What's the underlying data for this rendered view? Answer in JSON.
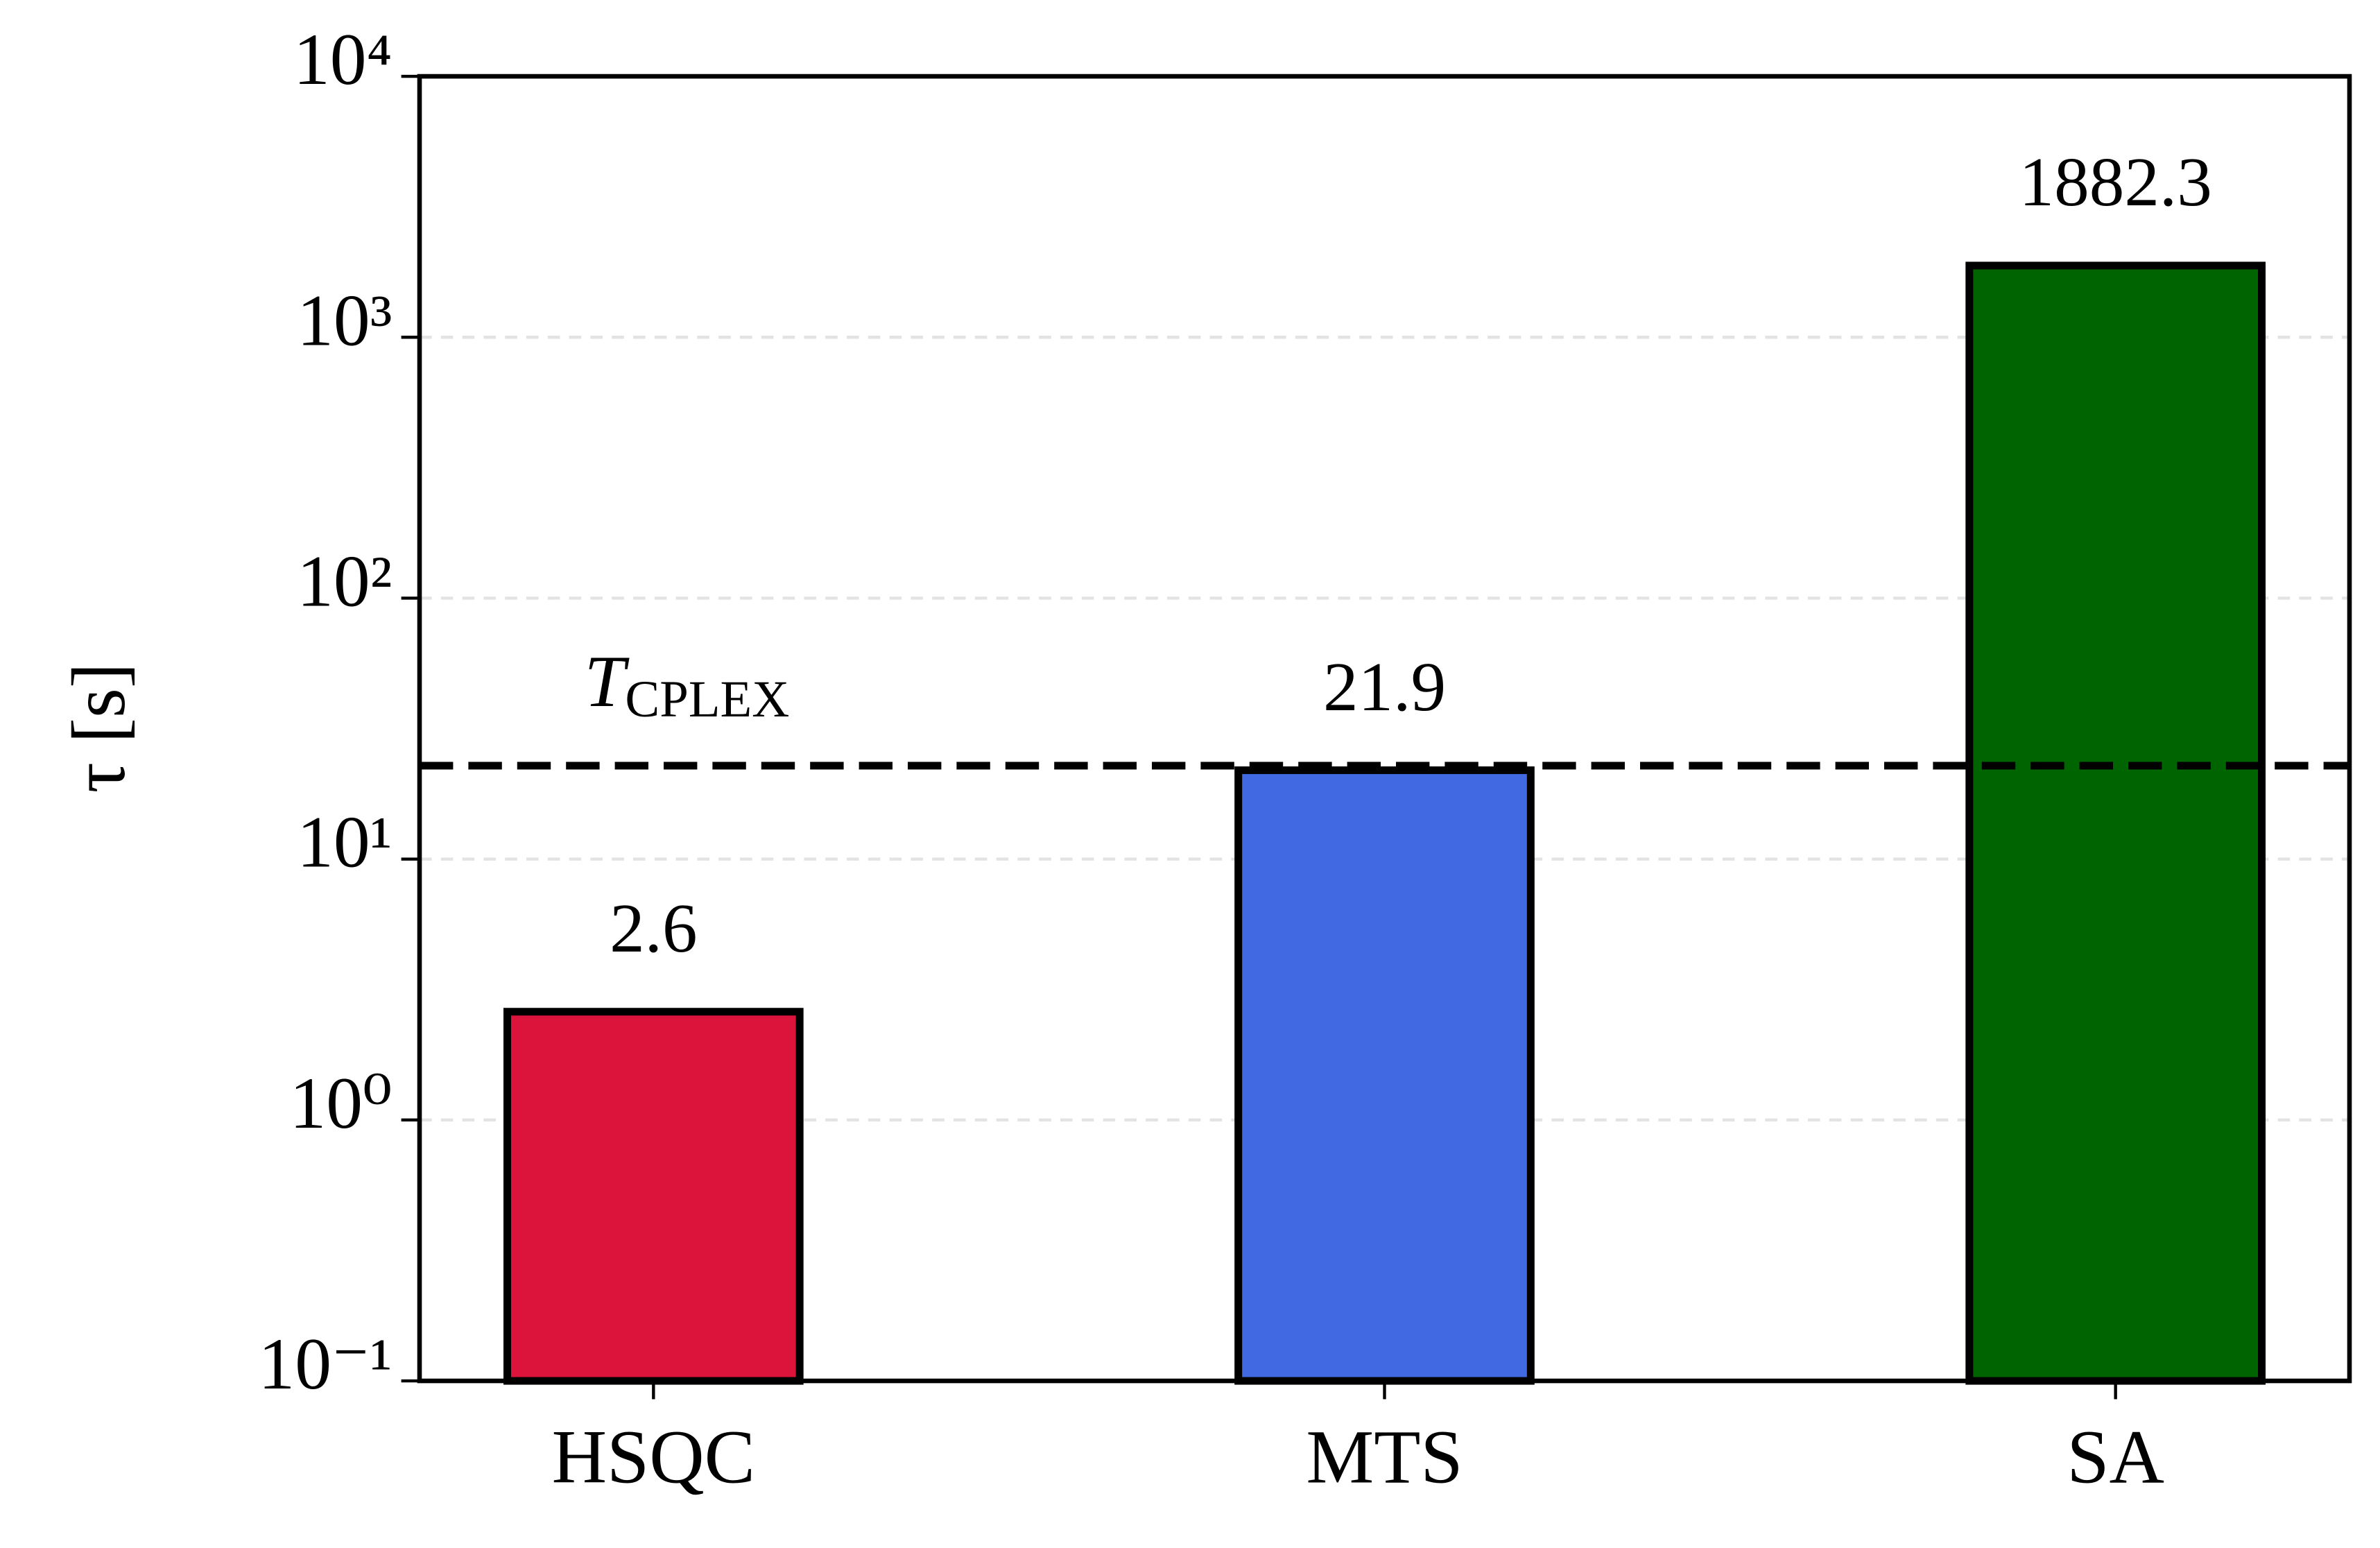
{
  "chart_data": {
    "type": "bar",
    "log_scale": true,
    "ylabel": "τ [s]",
    "categories": [
      "HSQC",
      "MTS",
      "SA"
    ],
    "values": [
      2.6,
      21.9,
      1882.3
    ],
    "colors": [
      "#dc143c",
      "#4169e1",
      "#006400"
    ],
    "ylim": [
      0.1,
      10000
    ],
    "yticks": [
      {
        "value": 0.1,
        "label": "10⁻¹"
      },
      {
        "value": 1,
        "label": "10⁰"
      },
      {
        "value": 10,
        "label": "10¹"
      },
      {
        "value": 100,
        "label": "10²"
      },
      {
        "value": 1000,
        "label": "10³"
      },
      {
        "value": 10000,
        "label": "10⁴"
      }
    ],
    "grid": true,
    "reference_line": {
      "value": 22.8,
      "label": "T",
      "label_subscript": "CPLEX"
    }
  }
}
